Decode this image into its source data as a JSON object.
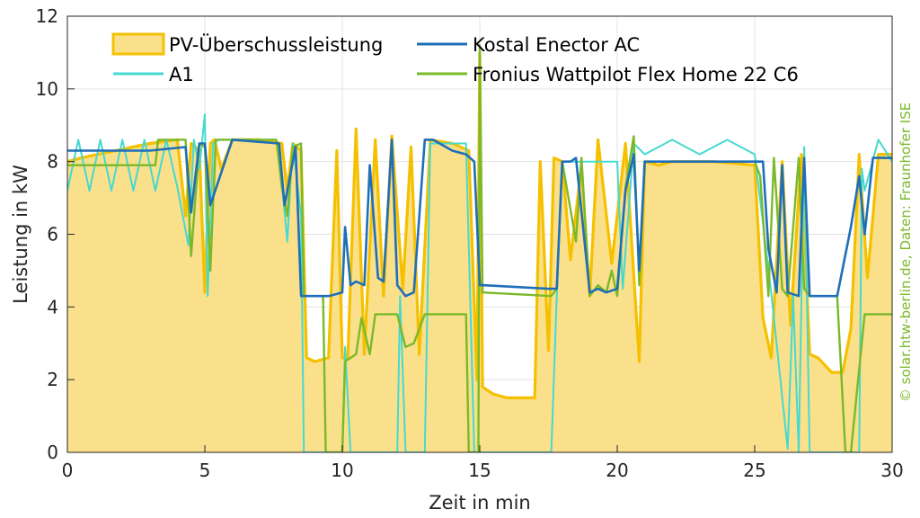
{
  "chart_data": {
    "type": "line",
    "xlabel": "Zeit in min",
    "ylabel": "Leistung in kW",
    "xlim": [
      0,
      30
    ],
    "ylim": [
      0,
      12
    ],
    "xticks": [
      0,
      5,
      10,
      15,
      20,
      25,
      30
    ],
    "yticks": [
      0,
      2,
      4,
      6,
      8,
      10,
      12
    ],
    "grid": true,
    "legend_position": "top",
    "credit": "© solar.htw-berlin.de, Daten: Fraunhofer ISE",
    "colors": {
      "surplus_fill": "#fbe08c",
      "surplus_line": "#f5c000",
      "kostal": "#1f6fb8",
      "a1": "#45d9d0",
      "fronius": "#7ab929",
      "grid": "#e3e3e3",
      "axis": "#262626",
      "credit": "#7ab929"
    },
    "series": [
      {
        "name": "PV-Überschussleistung",
        "style": "area",
        "x": [
          0,
          0.5,
          3,
          4.0,
          4.3,
          4.5,
          4.8,
          5.0,
          5.2,
          5.35,
          5.6,
          6.0,
          7.0,
          7.8,
          8.0,
          8.2,
          8.5,
          8.7,
          9.0,
          9.5,
          9.8,
          10.0,
          10.2,
          10.5,
          10.8,
          11.2,
          11.5,
          11.8,
          12.2,
          12.5,
          12.8,
          13.2,
          14.0,
          14.6,
          14.9,
          15.0,
          15.1,
          15.5,
          16.0,
          17.0,
          17.2,
          17.5,
          17.7,
          18.0,
          18.3,
          18.7,
          19.0,
          19.3,
          19.8,
          20.3,
          20.8,
          21.0,
          21.5,
          22.0,
          23.5,
          25.0,
          25.3,
          25.6,
          26.0,
          26.3,
          26.7,
          27.0,
          27.3,
          27.8,
          28.2,
          28.5,
          28.8,
          29.1,
          29.5,
          30
        ],
        "values": [
          8.0,
          8.1,
          8.5,
          8.6,
          6.5,
          8.5,
          8.3,
          4.4,
          8.5,
          8.6,
          7.8,
          8.6,
          8.6,
          8.5,
          7.2,
          8.5,
          8.3,
          2.6,
          2.5,
          2.6,
          8.3,
          2.6,
          2.6,
          8.9,
          2.7,
          8.6,
          4.3,
          8.7,
          4.5,
          8.4,
          2.7,
          8.6,
          8.5,
          8.3,
          2.0,
          11.0,
          1.8,
          1.6,
          1.5,
          1.5,
          8.0,
          2.8,
          8.1,
          8.0,
          5.3,
          7.9,
          4.3,
          8.6,
          5.2,
          8.5,
          2.5,
          8.0,
          7.9,
          8.0,
          8.0,
          7.9,
          3.7,
          2.6,
          8.0,
          3.5,
          8.2,
          2.7,
          2.6,
          2.2,
          2.2,
          3.4,
          8.2,
          4.8,
          8.2,
          8.2
        ]
      },
      {
        "name": "Kostal Enector AC",
        "style": "line",
        "x": [
          0,
          3,
          4.3,
          4.5,
          4.8,
          5.0,
          5.2,
          6.0,
          7.7,
          7.9,
          8.0,
          8.3,
          8.5,
          8.6,
          9.5,
          10.0,
          10.1,
          10.3,
          10.5,
          10.8,
          11.0,
          11.3,
          11.5,
          11.8,
          12.0,
          12.3,
          12.6,
          13.0,
          13.3,
          14.0,
          14.5,
          14.8,
          15.0,
          15.1,
          17.5,
          17.8,
          18.0,
          18.3,
          18.5,
          19.0,
          19.3,
          19.6,
          20.0,
          20.3,
          20.6,
          20.8,
          21.0,
          21.2,
          25.0,
          25.3,
          25.5,
          25.8,
          26.0,
          26.2,
          26.6,
          26.8,
          27.0,
          28.0,
          28.5,
          28.8,
          29.0,
          29.3,
          30
        ],
        "values": [
          8.3,
          8.3,
          8.4,
          6.6,
          8.5,
          8.5,
          6.8,
          8.6,
          8.5,
          6.8,
          7.2,
          8.4,
          4.3,
          4.3,
          4.3,
          4.4,
          6.2,
          4.6,
          4.7,
          4.6,
          7.9,
          4.8,
          4.7,
          8.6,
          4.6,
          4.3,
          4.4,
          8.6,
          8.6,
          8.3,
          8.2,
          8.0,
          4.6,
          4.6,
          4.5,
          4.5,
          8.0,
          8.0,
          8.1,
          4.4,
          4.5,
          4.4,
          4.5,
          7.2,
          8.2,
          5.0,
          8.0,
          8.0,
          8.0,
          8.0,
          5.6,
          4.4,
          7.9,
          4.4,
          4.3,
          8.1,
          4.3,
          4.3,
          6.2,
          7.6,
          6.0,
          8.1,
          8.1
        ]
      },
      {
        "name": "A1",
        "style": "line",
        "x": [
          0,
          0.4,
          0.8,
          1.2,
          1.6,
          2.0,
          2.4,
          2.8,
          3.2,
          3.6,
          4.0,
          4.4,
          4.6,
          4.8,
          5.0,
          5.1,
          5.3,
          5.5,
          7.6,
          7.8,
          8.0,
          8.2,
          8.5,
          8.6,
          8.7,
          9.8,
          10.0,
          10.1,
          10.3,
          12.0,
          12.1,
          12.3,
          13.0,
          13.2,
          14.5,
          14.8,
          15.0,
          17.6,
          17.8,
          18.0,
          20.0,
          20.2,
          20.6,
          21.0,
          22.0,
          23.0,
          24.0,
          25.0,
          25.6,
          26.2,
          26.4,
          26.6,
          26.8,
          27.0,
          28.8,
          28.9,
          29.0,
          29.5,
          30
        ],
        "values": [
          7.2,
          8.6,
          7.2,
          8.6,
          7.2,
          8.6,
          7.2,
          8.6,
          7.2,
          8.6,
          7.3,
          5.7,
          8.6,
          7.8,
          9.3,
          4.3,
          8.5,
          8.6,
          8.6,
          7.4,
          5.8,
          8.5,
          6.5,
          0.0,
          0.0,
          0.0,
          0.0,
          2.9,
          0.0,
          0.0,
          4.3,
          0.0,
          0.0,
          8.5,
          8.5,
          0.0,
          0.0,
          0.0,
          4.3,
          8.0,
          8.0,
          4.5,
          8.5,
          8.2,
          8.6,
          8.2,
          8.6,
          8.2,
          4.4,
          0.1,
          4.3,
          0.0,
          8.4,
          0.0,
          0.0,
          7.8,
          7.2,
          8.6,
          8.0
        ]
      },
      {
        "name": "Fronius Wattpilot Flex Home 22 C6",
        "style": "line",
        "x": [
          0,
          3.2,
          3.3,
          4.3,
          4.5,
          4.8,
          5.0,
          5.2,
          5.4,
          7.6,
          7.8,
          8.0,
          8.2,
          8.5,
          8.6,
          9.3,
          9.4,
          10.0,
          10.1,
          10.5,
          10.7,
          11.0,
          11.2,
          12.0,
          12.3,
          12.6,
          13.0,
          14.5,
          14.6,
          14.8,
          14.95,
          15.0,
          15.1,
          17.6,
          17.8,
          18.0,
          18.5,
          18.7,
          19.0,
          19.3,
          19.6,
          19.8,
          20.0,
          20.3,
          20.6,
          20.8,
          21.0,
          25.0,
          25.2,
          25.5,
          25.7,
          26.0,
          26.2,
          26.6,
          26.8,
          27.0,
          28.0,
          28.3,
          28.5,
          29.0,
          30
        ],
        "values": [
          7.9,
          7.9,
          8.6,
          8.6,
          5.4,
          8.5,
          8.4,
          5.0,
          8.6,
          8.6,
          7.3,
          6.5,
          8.4,
          8.5,
          4.3,
          4.3,
          0.0,
          0.0,
          2.5,
          2.7,
          3.7,
          2.7,
          3.8,
          3.8,
          2.9,
          3.0,
          3.8,
          3.8,
          0.0,
          0.0,
          0.0,
          11.2,
          4.4,
          4.3,
          4.5,
          8.0,
          5.8,
          8.1,
          4.3,
          4.6,
          4.4,
          5.0,
          4.3,
          7.3,
          8.7,
          4.6,
          8.0,
          8.0,
          7.6,
          4.3,
          8.1,
          4.5,
          4.3,
          8.1,
          4.5,
          4.3,
          4.3,
          0.0,
          0.0,
          3.8,
          3.8
        ]
      }
    ]
  }
}
